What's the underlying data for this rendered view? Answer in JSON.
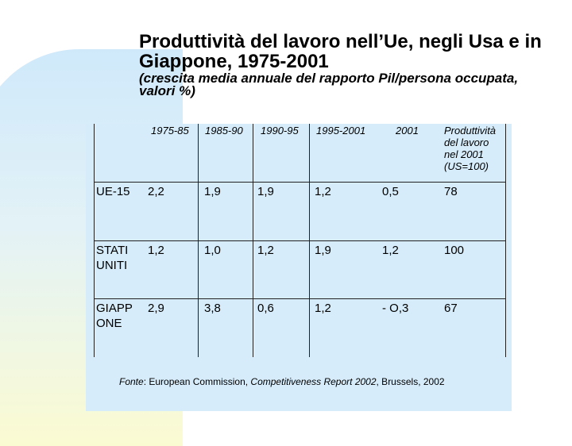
{
  "title": "Produttività del lavoro nell’Ue, negli Usa e in Giappone, 1975-2001",
  "subtitle": "(crescita media annuale del rapporto Pil/persona occupata, valori %)",
  "table": {
    "headers": [
      "1975-85",
      "1985-90",
      "1990-95",
      "1995-2001",
      "2001",
      "Produttività\ndel lavoro\nnel 2001\n(US=100)"
    ],
    "rows": [
      {
        "label": "UE-15",
        "values": [
          "2,2",
          "1,9",
          "1,9",
          "1,2",
          "0,5",
          "78"
        ]
      },
      {
        "label": "STATI\nUNITI",
        "values": [
          "1,2",
          "1,0",
          "1,2",
          "1,9",
          "1,2",
          "100"
        ]
      },
      {
        "label": "GIAPP\nONE",
        "values": [
          "2,9",
          "3,8",
          "0,6",
          "1,2",
          "- O,3",
          "67"
        ]
      }
    ]
  },
  "source": {
    "prefix": "Fonte",
    "sep": ": European Commission, ",
    "report": "Competitiveness Report 2002",
    "suffix": ", Brussels, 2002"
  }
}
